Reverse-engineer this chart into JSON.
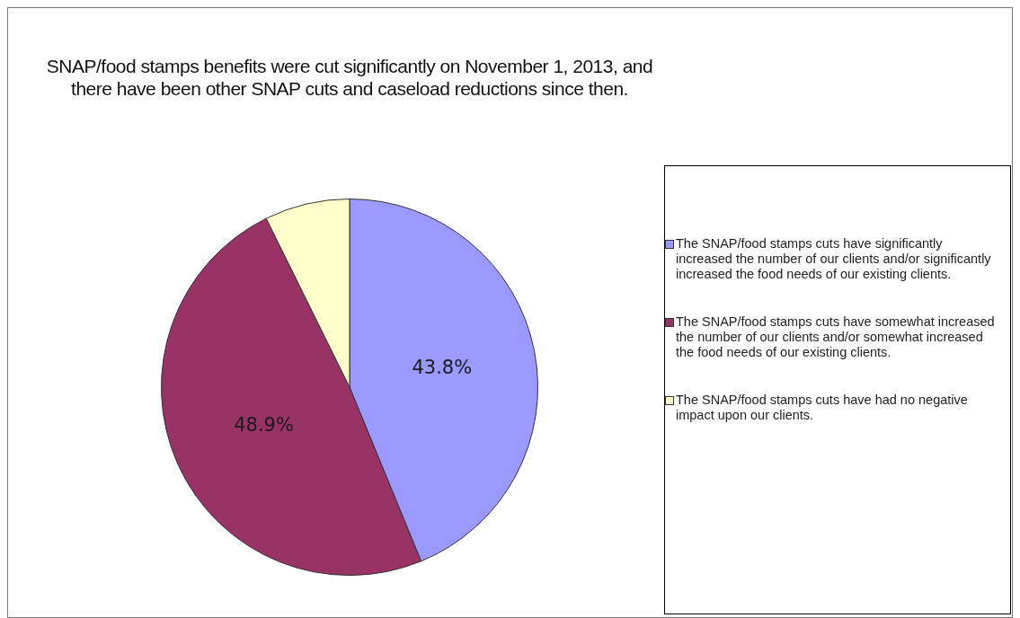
{
  "chart_data": {
    "type": "pie",
    "title": "SNAP/food stamps benefits were cut significantly on November 1, 2013, and there have been other SNAP cuts and caseload reductions since then.",
    "categories": [
      "The SNAP/food stamps cuts have significantly increased the number of our clients and/or significantly increased the food needs of our existing clients.",
      "The SNAP/food stamps cuts have somewhat increased the number of our clients and/or somewhat increased the food needs of our existing clients.",
      "The SNAP/food stamps cuts have had no negative impact upon our clients."
    ],
    "values": [
      43.8,
      48.9,
      7.3
    ],
    "value_labels": [
      "43.8%",
      "48.9%",
      null
    ],
    "colors": [
      "#9999ff",
      "#993366",
      "#ffffcc"
    ],
    "legend": "right"
  }
}
